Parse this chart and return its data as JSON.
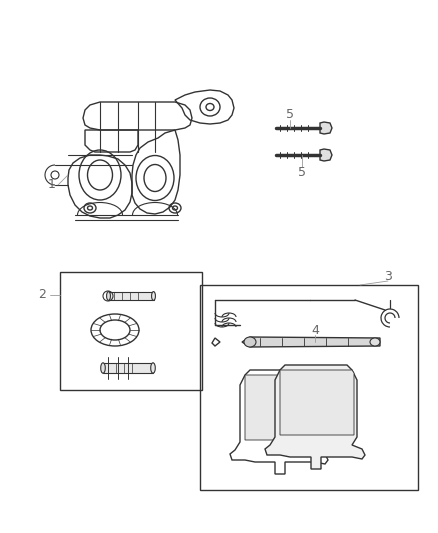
{
  "bg_color": "#ffffff",
  "line_color": "#333333",
  "label_color": "#666666",
  "lw": 1.0,
  "fig_width": 4.38,
  "fig_height": 5.33,
  "dpi": 100
}
